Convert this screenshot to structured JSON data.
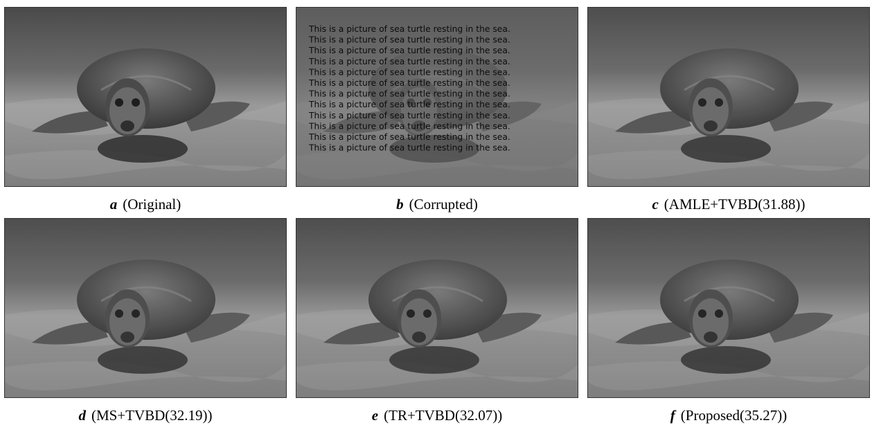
{
  "panels": [
    {
      "letter": "a",
      "caption": "(Original)"
    },
    {
      "letter": "b",
      "caption": "(Corrupted)"
    },
    {
      "letter": "c",
      "caption": "(AMLE+TVBD(31.88))"
    },
    {
      "letter": "d",
      "caption": "(MS+TVBD(32.19))"
    },
    {
      "letter": "e",
      "caption": "(TR+TVBD(32.07))"
    },
    {
      "letter": "f",
      "caption": "(Proposed(35.27))"
    }
  ],
  "overlay_text": [
    "This is a picture of sea turtle resting in the sea.",
    "This is a picture of sea turtle resting in the sea.",
    "This is a picture of sea turtle resting in the sea.",
    "This is a picture of sea turtle resting in the sea.",
    "This is a picture of sea turtle resting in the sea.",
    "This is a picture of sea turtle resting in the sea.",
    "This is a picture of sea turtle resting in the sea.",
    "This is a picture of sea turtle resting in the sea.",
    "This is a picture of sea turtle resting in the sea.",
    "This is a picture of sea turtle resting in the sea.",
    "This is a picture of sea turtle resting in the sea.",
    "This is a picture of sea turtle resting in the sea."
  ]
}
